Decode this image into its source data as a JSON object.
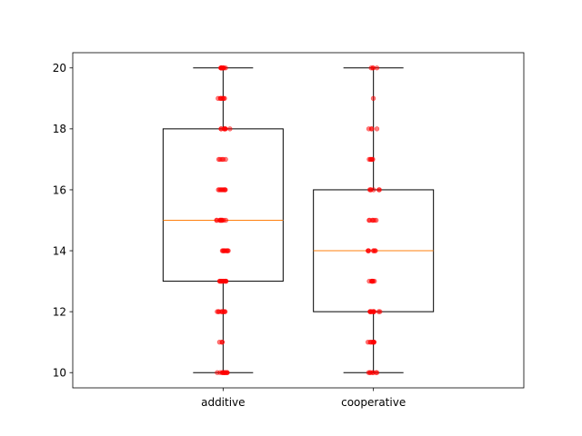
{
  "chart_data": {
    "type": "box",
    "categories": [
      "additive",
      "cooperative"
    ],
    "y_ticks": [
      10,
      12,
      14,
      16,
      18,
      20
    ],
    "ylim": [
      9.5,
      20.5
    ],
    "grid": false,
    "title": "",
    "xlabel": "",
    "ylabel": "",
    "colors": {
      "box": "#000000",
      "median": "#ff7f0e",
      "points": "#ff0000"
    },
    "boxes": [
      {
        "category": "additive",
        "whisker_low": 10,
        "q1": 13,
        "median": 15,
        "q3": 18,
        "whisker_high": 20
      },
      {
        "category": "cooperative",
        "whisker_low": 10,
        "q1": 12,
        "median": 14,
        "q3": 16,
        "whisker_high": 20
      }
    ],
    "points": [
      {
        "category": "additive",
        "values": [
          20,
          20,
          20,
          20,
          20,
          20,
          20,
          20,
          20,
          20,
          20,
          20,
          19,
          19,
          19,
          19,
          19,
          19,
          19,
          18,
          18,
          18,
          18,
          18,
          18,
          18,
          18,
          17,
          17,
          17,
          17,
          17,
          16,
          16,
          16,
          16,
          16,
          16,
          16,
          16,
          16,
          15,
          15,
          15,
          15,
          15,
          15,
          15,
          15,
          15,
          15,
          15,
          14,
          14,
          14,
          14,
          14,
          14,
          14,
          14,
          14,
          13,
          13,
          13,
          13,
          13,
          13,
          13,
          13,
          13,
          13,
          13,
          12,
          12,
          12,
          12,
          12,
          12,
          12,
          12,
          12,
          11,
          11,
          11,
          10,
          10,
          10,
          10,
          10,
          10,
          10,
          10,
          10,
          10,
          10,
          10
        ]
      },
      {
        "category": "cooperative",
        "values": [
          20,
          20,
          20,
          20,
          19,
          18,
          18,
          18,
          18,
          17,
          17,
          17,
          17,
          17,
          16,
          16,
          16,
          16,
          16,
          16,
          15,
          15,
          15,
          15,
          15,
          15,
          14,
          14,
          14,
          14,
          14,
          14,
          14,
          13,
          13,
          13,
          13,
          13,
          13,
          13,
          12,
          12,
          12,
          12,
          12,
          12,
          12,
          12,
          12,
          12,
          12,
          12,
          11,
          11,
          11,
          11,
          11,
          11,
          11,
          11,
          10,
          10,
          10,
          10,
          10,
          10,
          10
        ]
      }
    ]
  }
}
